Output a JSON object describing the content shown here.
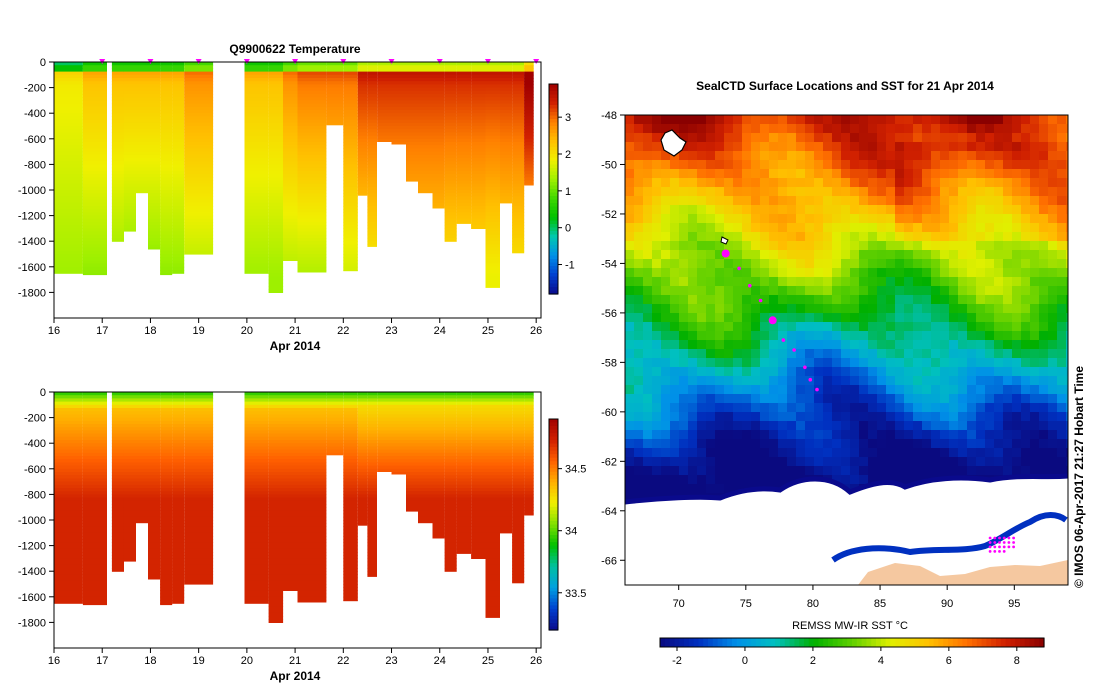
{
  "colors": {
    "temp_scale": [
      "#0a0a8c",
      "#0040d0",
      "#0090e8",
      "#00c8b0",
      "#00c000",
      "#40d800",
      "#a0f000",
      "#f0f000",
      "#ffc000",
      "#ff8000",
      "#d02000",
      "#a00000"
    ],
    "salt_scale": [
      "#0a0a8c",
      "#0040d0",
      "#00a0e0",
      "#00c0a0",
      "#00c000",
      "#80e000",
      "#f0f000",
      "#ffb000",
      "#ff6000",
      "#d02000",
      "#a00000"
    ],
    "sst_scale": [
      "#0a0a80",
      "#0030c0",
      "#0090e8",
      "#00c0c0",
      "#00b000",
      "#60d000",
      "#e0f000",
      "#ffc000",
      "#ff7000",
      "#d02000",
      "#8a0000"
    ],
    "magenta": "#ff00ff",
    "land": "#f5c8a0"
  },
  "chart_data": [
    {
      "id": "temperature",
      "type": "heatmap",
      "title": "Q9900622  Temperature",
      "xlabel": "Apr 2014",
      "x_ticks": [
        "16",
        "17",
        "18",
        "19",
        "20",
        "21",
        "22",
        "23",
        "24",
        "25",
        "26"
      ],
      "xlim": [
        16,
        26.1
      ],
      "ylim": [
        -2000,
        0
      ],
      "y_ticks": [
        "0",
        "-200",
        "-400",
        "-600",
        "-800",
        "-1000",
        "-1200",
        "-1400",
        "-1600",
        "-1800"
      ],
      "colorbar": {
        "min": -1.8,
        "max": 3.9,
        "ticks": [
          "3",
          "2",
          "1",
          "0",
          "-1"
        ],
        "tick_values": [
          3,
          2,
          1,
          0,
          -1
        ]
      },
      "profile_marks": [
        "17",
        "18",
        "19",
        "20",
        "21",
        "22",
        "23",
        "24",
        "25",
        "26"
      ],
      "profiles": [
        {
          "t": 16.0,
          "w": 0.6,
          "d": 1650,
          "s": 0.6,
          "b": 1.3
        },
        {
          "t": 16.6,
          "w": 0.5,
          "d": 1660,
          "s": 1.0,
          "b": 1.2
        },
        {
          "t": 17.2,
          "w": 0.25,
          "d": 1400,
          "s": 1.0,
          "b": 1.2
        },
        {
          "t": 17.45,
          "w": 0.25,
          "d": 1320,
          "s": 1.0,
          "b": 1.1
        },
        {
          "t": 17.7,
          "w": 0.25,
          "d": 1020,
          "s": 1.0,
          "b": 1.1
        },
        {
          "t": 17.95,
          "w": 0.25,
          "d": 1460,
          "s": 1.0,
          "b": 1.1
        },
        {
          "t": 18.2,
          "w": 0.25,
          "d": 1660,
          "s": 1.0,
          "b": 1.2
        },
        {
          "t": 18.45,
          "w": 0.25,
          "d": 1650,
          "s": 1.0,
          "b": 1.2
        },
        {
          "t": 18.7,
          "w": 0.6,
          "d": 1500,
          "s": 1.4,
          "b": 1.4
        },
        {
          "t": 19.95,
          "w": 0.5,
          "d": 1650,
          "s": 1.0,
          "b": 1.3
        },
        {
          "t": 20.45,
          "w": 0.3,
          "d": 1800,
          "s": 1.0,
          "b": 1.3
        },
        {
          "t": 20.75,
          "w": 0.3,
          "d": 1550,
          "s": 1.4,
          "b": 1.4
        },
        {
          "t": 21.05,
          "w": 0.6,
          "d": 1640,
          "s": 1.6,
          "b": 1.4
        },
        {
          "t": 21.65,
          "w": 0.35,
          "d": 490,
          "s": 1.6,
          "b": 1.6
        },
        {
          "t": 22.0,
          "w": 0.3,
          "d": 1630,
          "s": 1.6,
          "b": 1.6
        },
        {
          "t": 22.3,
          "w": 0.2,
          "d": 1040,
          "s": 2.0,
          "b": 1.8
        },
        {
          "t": 22.5,
          "w": 0.2,
          "d": 1440,
          "s": 2.0,
          "b": 1.8
        },
        {
          "t": 22.7,
          "w": 0.3,
          "d": 620,
          "s": 2.0,
          "b": 2.0
        },
        {
          "t": 23.0,
          "w": 0.3,
          "d": 640,
          "s": 2.0,
          "b": 2.0
        },
        {
          "t": 23.3,
          "w": 0.25,
          "d": 930,
          "s": 2.0,
          "b": 2.0
        },
        {
          "t": 23.55,
          "w": 0.3,
          "d": 1020,
          "s": 2.0,
          "b": 2.0
        },
        {
          "t": 23.85,
          "w": 0.25,
          "d": 1140,
          "s": 2.0,
          "b": 2.0
        },
        {
          "t": 24.1,
          "w": 0.25,
          "d": 1400,
          "s": 2.0,
          "b": 1.9
        },
        {
          "t": 24.35,
          "w": 0.3,
          "d": 1260,
          "s": 2.0,
          "b": 1.9
        },
        {
          "t": 24.65,
          "w": 0.3,
          "d": 1300,
          "s": 2.0,
          "b": 1.9
        },
        {
          "t": 24.95,
          "w": 0.3,
          "d": 1760,
          "s": 2.0,
          "b": 1.8
        },
        {
          "t": 25.25,
          "w": 0.25,
          "d": 1100,
          "s": 2.0,
          "b": 1.9
        },
        {
          "t": 25.5,
          "w": 0.25,
          "d": 1490,
          "s": 2.0,
          "b": 1.9
        },
        {
          "t": 25.75,
          "w": 0.2,
          "d": 960,
          "s": 2.6,
          "b": 2.0
        }
      ]
    },
    {
      "id": "salinity",
      "type": "heatmap",
      "title": "",
      "xlabel": "Apr 2014",
      "x_ticks": [
        "16",
        "17",
        "18",
        "19",
        "20",
        "21",
        "22",
        "23",
        "24",
        "25",
        "26"
      ],
      "xlim": [
        16,
        26.1
      ],
      "ylim": [
        -2000,
        0
      ],
      "y_ticks": [
        "0",
        "-200",
        "-400",
        "-600",
        "-800",
        "-1000",
        "-1200",
        "-1400",
        "-1600",
        "-1800"
      ],
      "colorbar": {
        "min": 33.2,
        "max": 34.9,
        "ticks": [
          "34.5",
          "34",
          "33.5"
        ],
        "tick_values": [
          34.5,
          34,
          33.5
        ]
      }
    },
    {
      "id": "sst_map",
      "type": "heatmap",
      "title": "SealCTD Surface Locations and SST for 21 Apr 2014",
      "xlim": [
        66,
        99
      ],
      "ylim": [
        -67,
        -48
      ],
      "x_ticks": [
        "70",
        "75",
        "80",
        "85",
        "90",
        "95"
      ],
      "x_tick_values": [
        70,
        75,
        80,
        85,
        90,
        95
      ],
      "y_ticks": [
        "-48",
        "-50",
        "-52",
        "-54",
        "-56",
        "-58",
        "-60",
        "-62",
        "-64",
        "-66"
      ],
      "y_tick_values": [
        -48,
        -50,
        -52,
        -54,
        -56,
        -58,
        -60,
        -62,
        -64,
        -66
      ],
      "colorbar": {
        "label": "REMSS MW-IR SST °C",
        "min": -2.5,
        "max": 8.8,
        "ticks": [
          "-2",
          "0",
          "2",
          "4",
          "6",
          "8"
        ],
        "tick_values": [
          -2,
          0,
          2,
          4,
          6,
          8
        ]
      },
      "track": [
        {
          "lon": 73.5,
          "lat": -53.6,
          "big": true
        },
        {
          "lon": 74.5,
          "lat": -54.2,
          "big": false
        },
        {
          "lon": 75.3,
          "lat": -54.9,
          "big": false
        },
        {
          "lon": 76.1,
          "lat": -55.5,
          "big": false
        },
        {
          "lon": 77.0,
          "lat": -56.3,
          "big": true
        },
        {
          "lon": 77.8,
          "lat": -57.1,
          "big": false
        },
        {
          "lon": 78.6,
          "lat": -57.5,
          "big": false
        },
        {
          "lon": 79.4,
          "lat": -58.2,
          "big": false
        },
        {
          "lon": 79.8,
          "lat": -58.7,
          "big": false
        },
        {
          "lon": 80.3,
          "lat": -59.1,
          "big": false
        }
      ]
    }
  ],
  "footer": {
    "stamp": "© IMOS 06-Apr-2017 21:27 Hobart Time"
  }
}
